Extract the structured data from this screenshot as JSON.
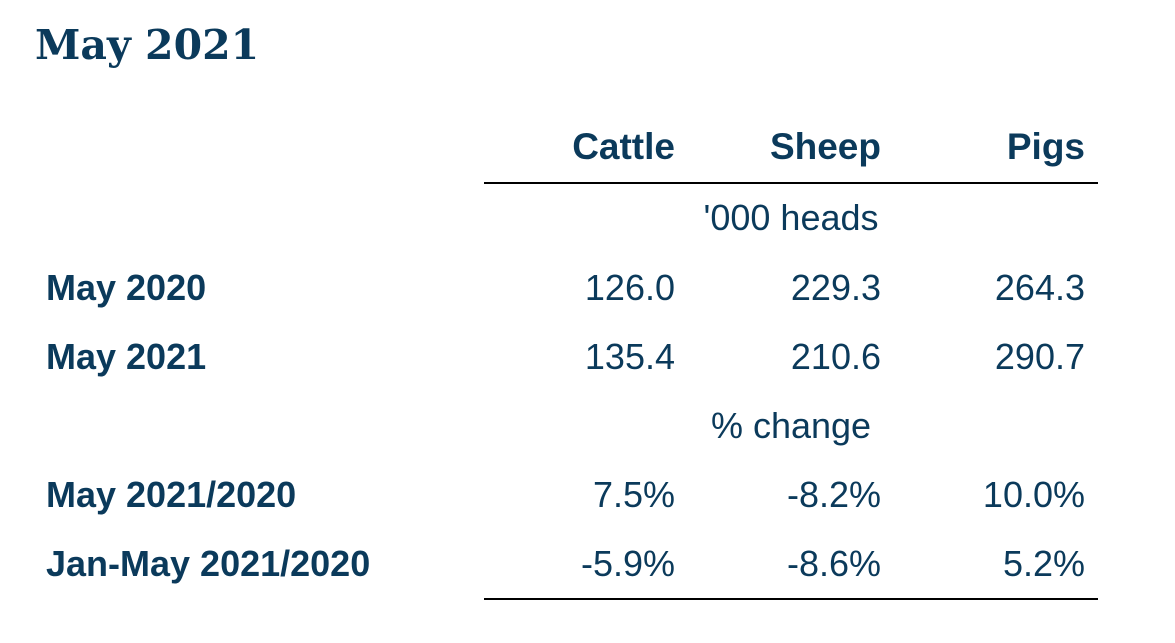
{
  "title": "May 2021",
  "columns": [
    "Cattle",
    "Sheep",
    "Pigs"
  ],
  "sections": [
    {
      "unit_label": "'000 heads",
      "rows": [
        {
          "label": "May 2020",
          "values": [
            "126.0",
            "229.3",
            "264.3"
          ]
        },
        {
          "label": "May 2021",
          "values": [
            "135.4",
            "210.6",
            "290.7"
          ]
        }
      ]
    },
    {
      "unit_label": "% change",
      "rows": [
        {
          "label": "May 2021/2020",
          "values": [
            "7.5%",
            "-8.2%",
            "10.0%"
          ]
        },
        {
          "label": "Jan-May 2021/2020",
          "values": [
            "-5.9%",
            "-8.6%",
            "5.2%"
          ]
        }
      ]
    }
  ],
  "colors": {
    "text": "#0b3a5b",
    "rule": "#000000",
    "background": "#ffffff"
  }
}
